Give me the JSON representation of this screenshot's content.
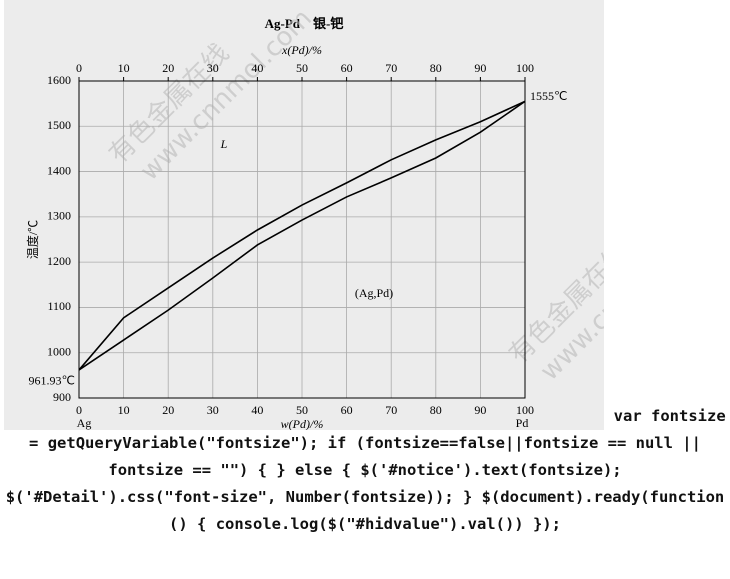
{
  "chart_data": {
    "type": "line",
    "title": "Ag-Pd　银-钯",
    "xlabel": "w(Pd)/%",
    "x2label": "x(Pd)/%",
    "ylabel": "温度/℃",
    "x": [
      0,
      10,
      20,
      30,
      40,
      50,
      60,
      70,
      80,
      90,
      100
    ],
    "series": [
      {
        "color": "#000000",
        "values": [
          961.93,
          1077,
          1143,
          1209,
          1271,
          1326,
          1375,
          1426,
          1470,
          1510,
          1555
        ]
      },
      {
        "color": "#000000",
        "values": [
          961.93,
          1028,
          1094,
          1165,
          1238,
          1293,
          1344,
          1386,
          1430,
          1487,
          1555
        ]
      }
    ],
    "xlim": [
      0,
      100
    ],
    "xticks": [
      0,
      10,
      20,
      30,
      40,
      50,
      60,
      70,
      80,
      90,
      100
    ],
    "x2ticks": [
      0,
      10,
      20,
      30,
      40,
      50,
      60,
      70,
      80,
      90,
      100
    ],
    "ylim": [
      900,
      1600
    ],
    "yticks": [
      900,
      1000,
      1100,
      1200,
      1300,
      1400,
      1500,
      1600
    ],
    "grid": true,
    "annotations": [
      "961.93℃",
      "1555℃",
      "L",
      "(Ag,Pd)",
      "Ag",
      "Pd"
    ],
    "watermark": [
      "有色金属在线",
      "www.cnnmol.com"
    ]
  },
  "page_text": {
    "code": "var fontsize = getQueryVariable(\"fontsize\"); if (fontsize==false||fontsize == null || fontsize == \"\") { } else { $('#notice').text(fontsize); $('#Detail').css(\"font-size\", Number(fontsize)); } $(document).ready(function () { console.log($(\"#hidvalue\").val()) });"
  }
}
